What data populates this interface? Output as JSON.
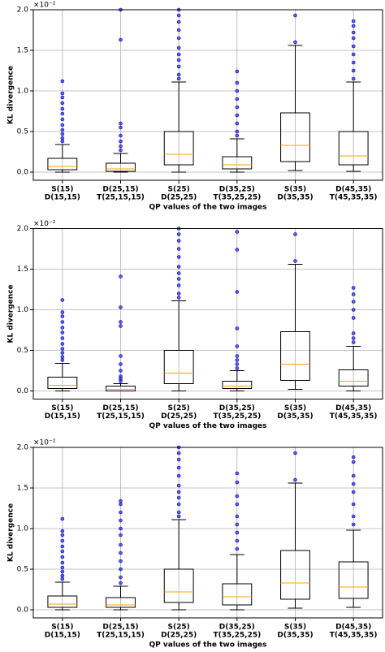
{
  "chart_data": [
    {
      "type": "box",
      "y_multiplier": "×10⁻²",
      "ylabel": "KL divergence",
      "xlabel": "QP values of the two images",
      "categories": [
        [
          "S(15)",
          "D(15,15)"
        ],
        [
          "D(25,15)",
          "T(25,15,15)"
        ],
        [
          "S(25)",
          "D(25,25)"
        ],
        [
          "D(35,25)",
          "T(35,25,25)"
        ],
        [
          "S(35)",
          "D(35,35)"
        ],
        [
          "D(45,35)",
          "T(45,35,35)"
        ]
      ],
      "boxes": [
        {
          "whislo": 0.0,
          "q1": 0.03,
          "med": 0.07,
          "q3": 0.17,
          "whishi": 0.34,
          "outliers": [
            0.38,
            0.42,
            0.47,
            0.52,
            0.58,
            0.65,
            0.72,
            0.78,
            0.85,
            0.92,
            0.97,
            1.12
          ]
        },
        {
          "whislo": 0.0,
          "q1": 0.01,
          "med": 0.04,
          "q3": 0.11,
          "whishi": 0.23,
          "outliers": [
            0.27,
            0.32,
            0.38,
            0.45,
            0.55,
            0.6,
            1.63,
            2.0
          ]
        },
        {
          "whislo": 0.0,
          "q1": 0.09,
          "med": 0.22,
          "q3": 0.5,
          "whishi": 1.11,
          "outliers": [
            1.15,
            1.2,
            1.3,
            1.38,
            1.45,
            1.53,
            1.65,
            1.75,
            1.85,
            1.93,
            2.0
          ]
        },
        {
          "whislo": 0.0,
          "q1": 0.04,
          "med": 0.09,
          "q3": 0.19,
          "whishi": 0.41,
          "outliers": [
            0.45,
            0.5,
            0.6,
            0.7,
            0.8,
            0.9,
            1.0,
            1.1,
            1.24
          ]
        },
        {
          "whislo": 0.02,
          "q1": 0.13,
          "med": 0.33,
          "q3": 0.73,
          "whishi": 1.56,
          "outliers": [
            1.6,
            1.93
          ]
        },
        {
          "whislo": 0.01,
          "q1": 0.09,
          "med": 0.2,
          "q3": 0.5,
          "whishi": 1.11,
          "outliers": [
            1.15,
            1.25,
            1.35,
            1.45,
            1.55,
            1.65,
            1.72,
            1.8,
            1.86
          ]
        }
      ],
      "ylim": [
        -0.1,
        2.0
      ],
      "yticks": [
        {
          "value": 0,
          "label": "0.0"
        },
        0.5,
        {
          "value": 1,
          "label": "1.0"
        },
        1.5,
        {
          "value": 2,
          "label": "2.0"
        }
      ],
      "grid": true,
      "box_color": "#000000",
      "median_color": "#ffa500",
      "flier_color": "#0000ff"
    },
    {
      "type": "box",
      "y_multiplier": "×10⁻²",
      "ylabel": "KL divergence",
      "xlabel": "QP values of the two images",
      "categories": [
        [
          "S(15)",
          "D(15,15)"
        ],
        [
          "D(25,15)",
          "T(25,15,15)"
        ],
        [
          "S(25)",
          "D(25,25)"
        ],
        [
          "D(35,25)",
          "T(35,25,25)"
        ],
        [
          "S(35)",
          "D(35,35)"
        ],
        [
          "D(45,35)",
          "T(45,35,35)"
        ]
      ],
      "boxes": [
        {
          "whislo": 0.0,
          "q1": 0.03,
          "med": 0.07,
          "q3": 0.17,
          "whishi": 0.34,
          "outliers": [
            0.38,
            0.42,
            0.47,
            0.52,
            0.58,
            0.65,
            0.72,
            0.78,
            0.85,
            0.92,
            0.97,
            1.12
          ]
        },
        {
          "whislo": 0.0,
          "q1": 0.0,
          "med": 0.02,
          "q3": 0.06,
          "whishi": 0.09,
          "outliers": [
            0.12,
            0.15,
            0.18,
            0.25,
            0.33,
            0.43,
            0.8,
            0.85,
            1.03,
            1.41
          ]
        },
        {
          "whislo": 0.0,
          "q1": 0.09,
          "med": 0.22,
          "q3": 0.5,
          "whishi": 1.11,
          "outliers": [
            1.15,
            1.2,
            1.3,
            1.38,
            1.45,
            1.53,
            1.65,
            1.75,
            1.85,
            1.93,
            2.0
          ]
        },
        {
          "whislo": 0.0,
          "q1": 0.03,
          "med": 0.06,
          "q3": 0.12,
          "whishi": 0.25,
          "outliers": [
            0.28,
            0.33,
            0.38,
            0.43,
            0.55,
            0.77,
            1.22,
            1.74,
            1.96
          ]
        },
        {
          "whislo": 0.02,
          "q1": 0.13,
          "med": 0.33,
          "q3": 0.73,
          "whishi": 1.56,
          "outliers": [
            1.6,
            1.93
          ]
        },
        {
          "whislo": 0.0,
          "q1": 0.06,
          "med": 0.12,
          "q3": 0.26,
          "whishi": 0.55,
          "outliers": [
            0.6,
            0.65,
            0.71,
            0.9,
            1.0,
            1.1,
            1.19,
            1.27
          ]
        }
      ],
      "ylim": [
        -0.1,
        2.0
      ],
      "yticks": [
        {
          "value": 0,
          "label": "0.0"
        },
        0.5,
        {
          "value": 1,
          "label": "1.0"
        },
        1.5,
        {
          "value": 2,
          "label": "2.0"
        }
      ],
      "grid": true,
      "box_color": "#000000",
      "median_color": "#ffa500",
      "flier_color": "#0000ff"
    },
    {
      "type": "box",
      "y_multiplier": "×10⁻²",
      "ylabel": "KL divergence",
      "xlabel": "QP values of the two images",
      "categories": [
        [
          "S(15)",
          "D(15,15)"
        ],
        [
          "D(25,15)",
          "T(25,15,15)"
        ],
        [
          "S(25)",
          "D(25,25)"
        ],
        [
          "D(35,25)",
          "T(35,25,25)"
        ],
        [
          "S(35)",
          "D(35,35)"
        ],
        [
          "D(45,35)",
          "T(45,35,35)"
        ]
      ],
      "boxes": [
        {
          "whislo": 0.0,
          "q1": 0.03,
          "med": 0.07,
          "q3": 0.17,
          "whishi": 0.34,
          "outliers": [
            0.38,
            0.42,
            0.47,
            0.52,
            0.58,
            0.65,
            0.72,
            0.78,
            0.85,
            0.92,
            0.97,
            1.12
          ]
        },
        {
          "whislo": 0.0,
          "q1": 0.03,
          "med": 0.06,
          "q3": 0.15,
          "whishi": 0.29,
          "outliers": [
            0.33,
            0.4,
            0.5,
            0.6,
            0.7,
            0.8,
            0.92,
            1.0,
            1.1,
            1.2,
            1.3,
            1.34
          ]
        },
        {
          "whislo": 0.0,
          "q1": 0.09,
          "med": 0.22,
          "q3": 0.5,
          "whishi": 1.11,
          "outliers": [
            1.15,
            1.2,
            1.3,
            1.38,
            1.45,
            1.53,
            1.65,
            1.75,
            1.85,
            1.93,
            2.0
          ]
        },
        {
          "whislo": 0.0,
          "q1": 0.06,
          "med": 0.16,
          "q3": 0.32,
          "whishi": 0.68,
          "outliers": [
            0.75,
            0.85,
            0.95,
            1.05,
            1.15,
            1.3,
            1.4,
            1.57,
            1.68
          ]
        },
        {
          "whislo": 0.02,
          "q1": 0.13,
          "med": 0.33,
          "q3": 0.73,
          "whishi": 1.56,
          "outliers": [
            1.6,
            1.93
          ]
        },
        {
          "whislo": 0.03,
          "q1": 0.14,
          "med": 0.28,
          "q3": 0.59,
          "whishi": 0.98,
          "outliers": [
            1.05,
            1.15,
            1.3,
            1.45,
            1.55,
            1.65,
            1.82,
            1.88
          ]
        }
      ],
      "ylim": [
        -0.1,
        2.0
      ],
      "yticks": [
        {
          "value": 0,
          "label": "0.0"
        },
        0.5,
        {
          "value": 1,
          "label": "1.0"
        },
        1.5,
        {
          "value": 2,
          "label": "2.0"
        }
      ],
      "grid": true,
      "box_color": "#000000",
      "median_color": "#ffa500",
      "flier_color": "#0000ff"
    }
  ]
}
